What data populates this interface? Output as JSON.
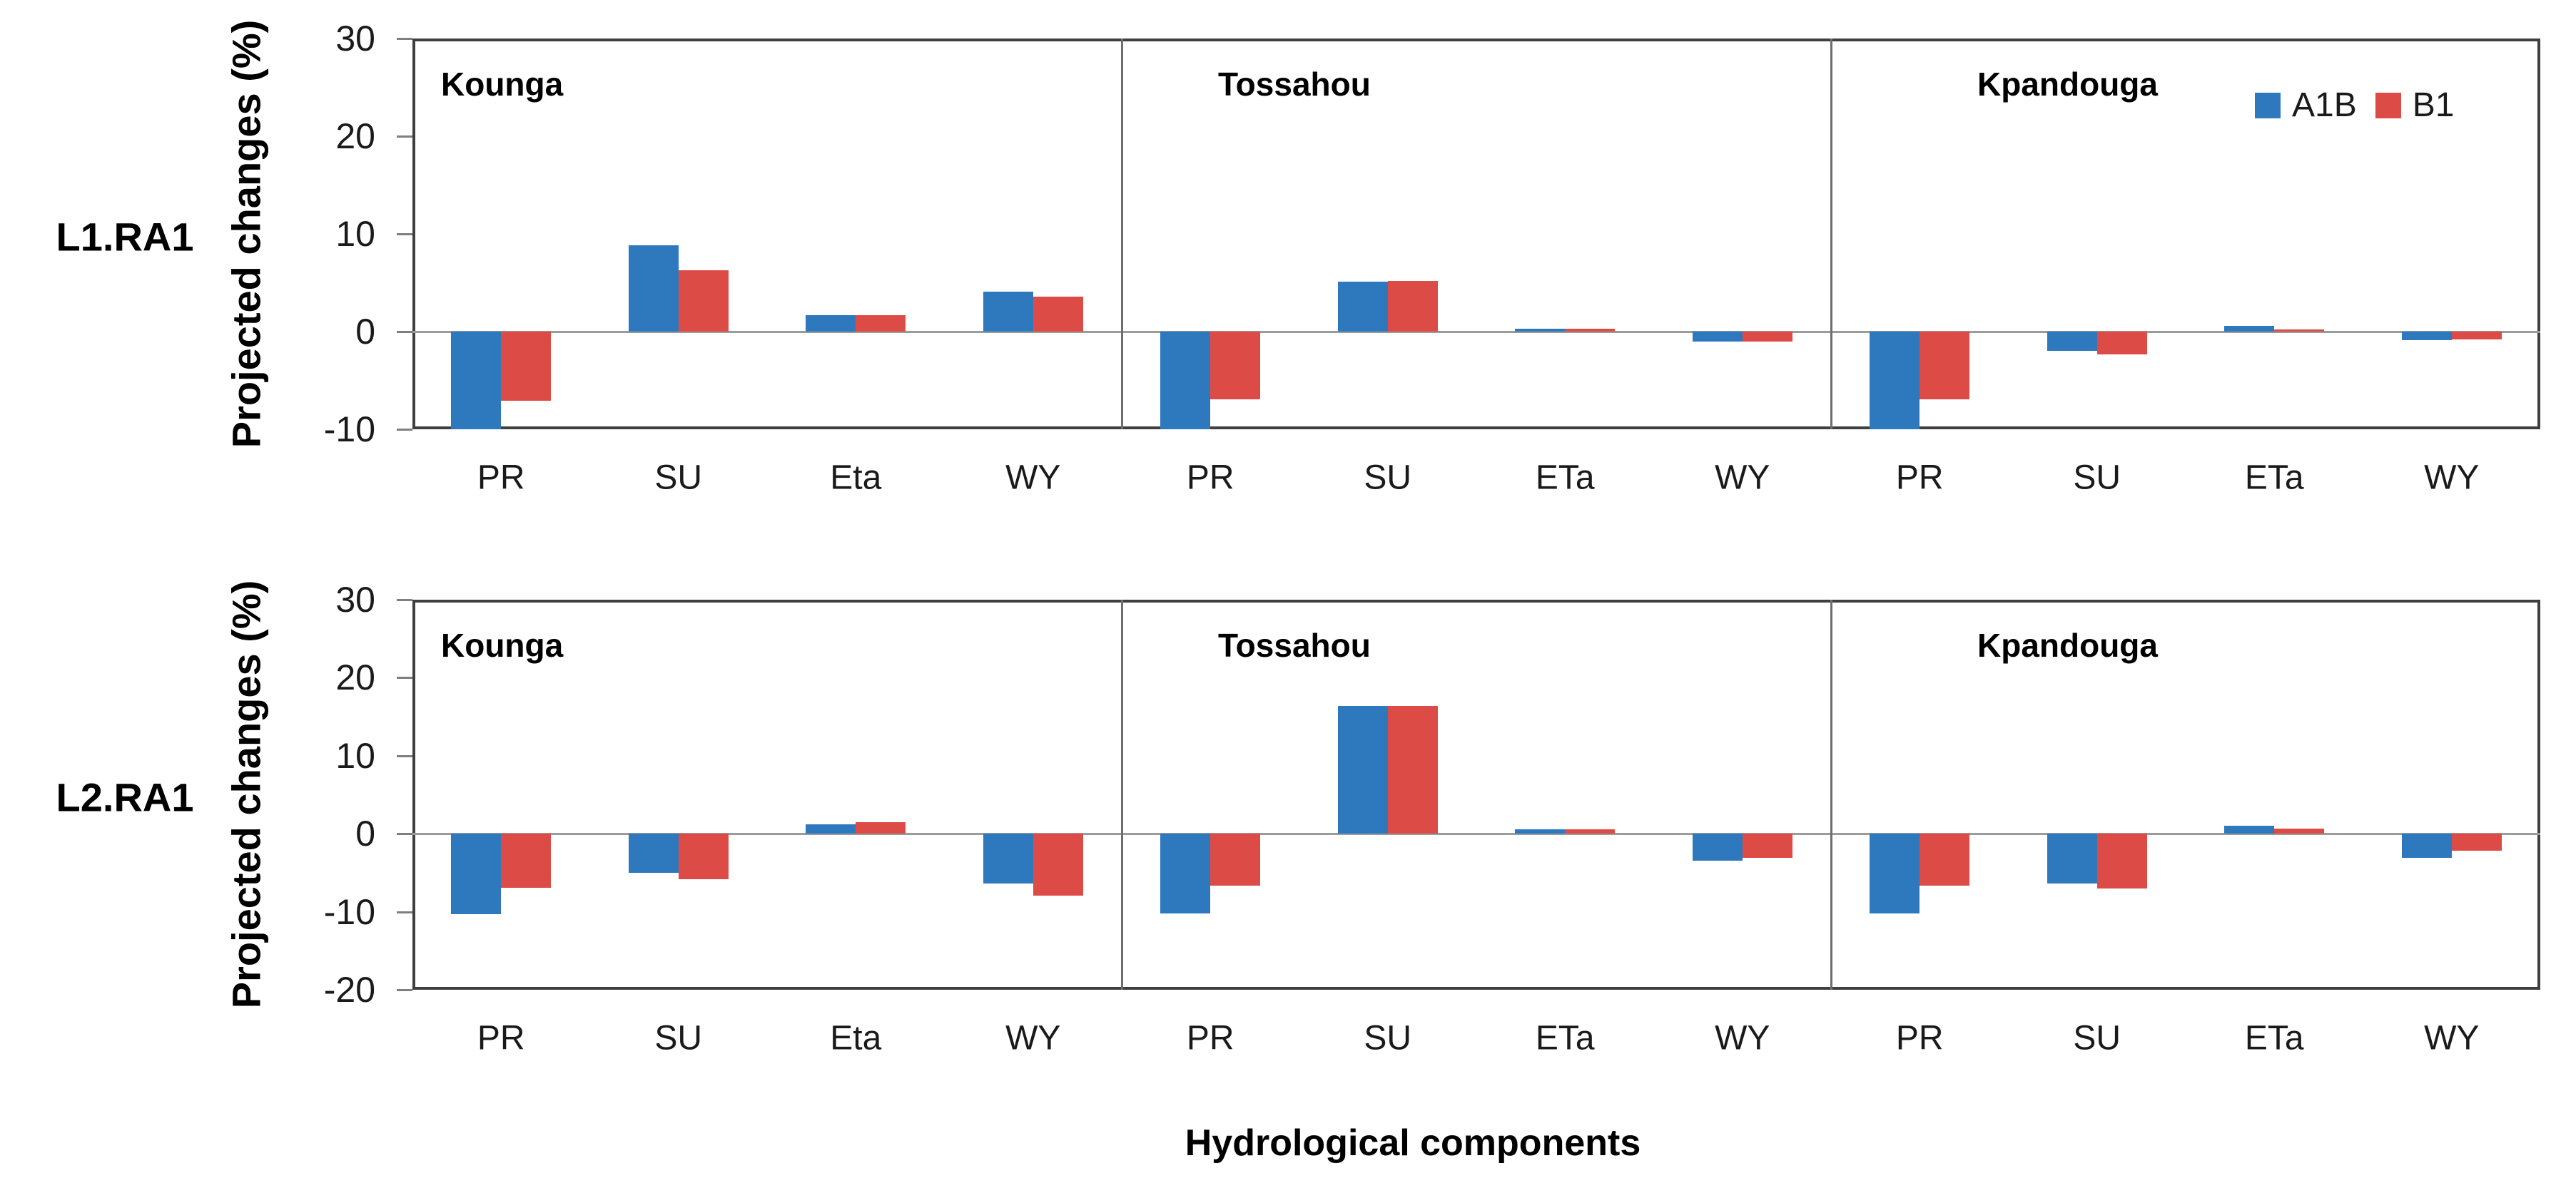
{
  "figure": {
    "background": "#ffffff"
  },
  "chart_data": {
    "type": "bar",
    "title": "",
    "xlabel": "Hydrological components",
    "ylabel": "Projected changes (%)",
    "grid": "zero-line-only",
    "legend": {
      "position": "top-right-first-row-last-panel",
      "entries": [
        {
          "label": "A1B",
          "color": "#2e79be"
        },
        {
          "label": "B1",
          "color": "#dd4b47"
        }
      ]
    },
    "series_colors": {
      "A1B": "#2e79be",
      "B1": "#dd4b47"
    },
    "rows": [
      {
        "label": "L1.RA1",
        "ylim": [
          -10,
          30
        ],
        "yticks": [
          30,
          20,
          10,
          0,
          -10
        ],
        "panels": [
          {
            "title": "Kounga",
            "categories": [
              "PR",
              "SU",
              "Eta",
              "WY"
            ],
            "series": [
              {
                "name": "A1B",
                "values": [
                  -10,
                  8.8,
                  1.7,
                  4.1
                ]
              },
              {
                "name": "B1",
                "values": [
                  -7.1,
                  6.3,
                  1.7,
                  3.6
                ]
              }
            ]
          },
          {
            "title": "Tossahou",
            "categories": [
              "PR",
              "SU",
              "ETa",
              "WY"
            ],
            "series": [
              {
                "name": "A1B",
                "values": [
                  -10,
                  5.1,
                  0.3,
                  -1.0
                ]
              },
              {
                "name": "B1",
                "values": [
                  -6.9,
                  5.2,
                  0.3,
                  -1.0
                ]
              }
            ]
          },
          {
            "title": "Kpandouga",
            "categories": [
              "PR",
              "SU",
              "ETa",
              "WY"
            ],
            "series": [
              {
                "name": "A1B",
                "values": [
                  -10,
                  -2.0,
                  0.6,
                  -0.9
                ]
              },
              {
                "name": "B1",
                "values": [
                  -6.9,
                  -2.3,
                  0.2,
                  -0.8
                ]
              }
            ]
          }
        ]
      },
      {
        "label": "L2.RA1",
        "ylim": [
          -20,
          30
        ],
        "yticks": [
          30,
          20,
          10,
          0,
          -10,
          -20
        ],
        "panels": [
          {
            "title": "Kounga",
            "categories": [
              "PR",
              "SU",
              "Eta",
              "WY"
            ],
            "series": [
              {
                "name": "A1B",
                "values": [
                  -10.3,
                  -5.0,
                  1.2,
                  -6.4
                ]
              },
              {
                "name": "B1",
                "values": [
                  -6.9,
                  -5.8,
                  1.5,
                  -7.9
                ]
              }
            ]
          },
          {
            "title": "Tossahou",
            "categories": [
              "PR",
              "SU",
              "ETa",
              "WY"
            ],
            "series": [
              {
                "name": "A1B",
                "values": [
                  -10.2,
                  16.4,
                  0.6,
                  -3.5
                ]
              },
              {
                "name": "B1",
                "values": [
                  -6.7,
                  16.4,
                  0.6,
                  -3.1
                ]
              }
            ]
          },
          {
            "title": "Kpandouga",
            "categories": [
              "PR",
              "SU",
              "ETa",
              "WY"
            ],
            "series": [
              {
                "name": "A1B",
                "values": [
                  -10.2,
                  -6.4,
                  1.0,
                  -3.1
                ]
              },
              {
                "name": "B1",
                "values": [
                  -6.7,
                  -7.0,
                  0.7,
                  -2.2
                ]
              }
            ]
          }
        ]
      }
    ]
  }
}
